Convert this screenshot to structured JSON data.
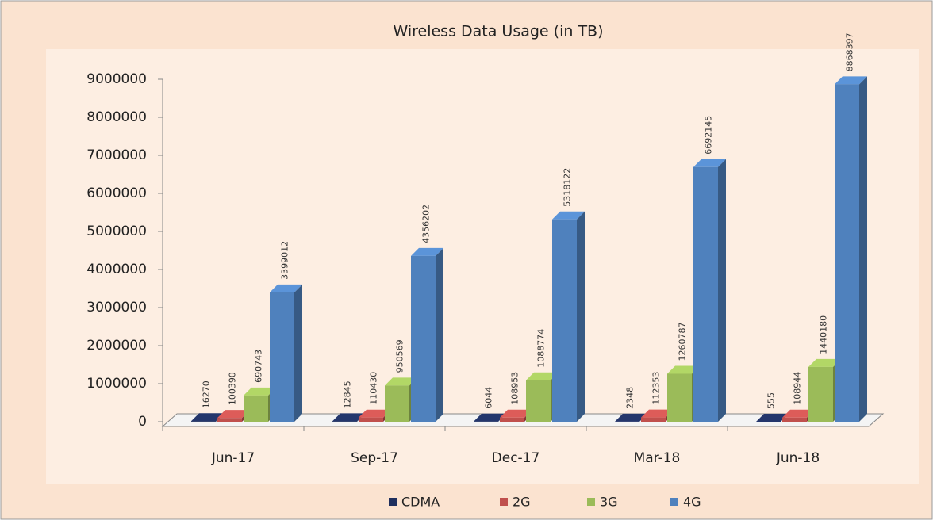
{
  "chart_data": {
    "type": "bar",
    "title": "Wireless Data Usage (in TB)",
    "categories": [
      "Jun-17",
      "Sep-17",
      "Dec-17",
      "Mar-18",
      "Jun-18"
    ],
    "series": [
      {
        "name": "CDMA",
        "color": "#1f2f5e",
        "values": [
          16270,
          12845,
          6044,
          2348,
          555
        ]
      },
      {
        "name": "2G",
        "color": "#c0504d",
        "values": [
          100390,
          110430,
          108953,
          112353,
          108944
        ]
      },
      {
        "name": "3G",
        "color": "#9bbb59",
        "values": [
          690743,
          950569,
          1088774,
          1260787,
          1440180
        ]
      },
      {
        "name": "4G",
        "color": "#4f81bd",
        "values": [
          3399012,
          4356202,
          5318122,
          6692145,
          8868397
        ]
      }
    ],
    "ylim": [
      0,
      9000000
    ],
    "yticks": [
      0,
      1000000,
      2000000,
      3000000,
      4000000,
      5000000,
      6000000,
      7000000,
      8000000,
      9000000
    ],
    "legend": "bottom"
  }
}
